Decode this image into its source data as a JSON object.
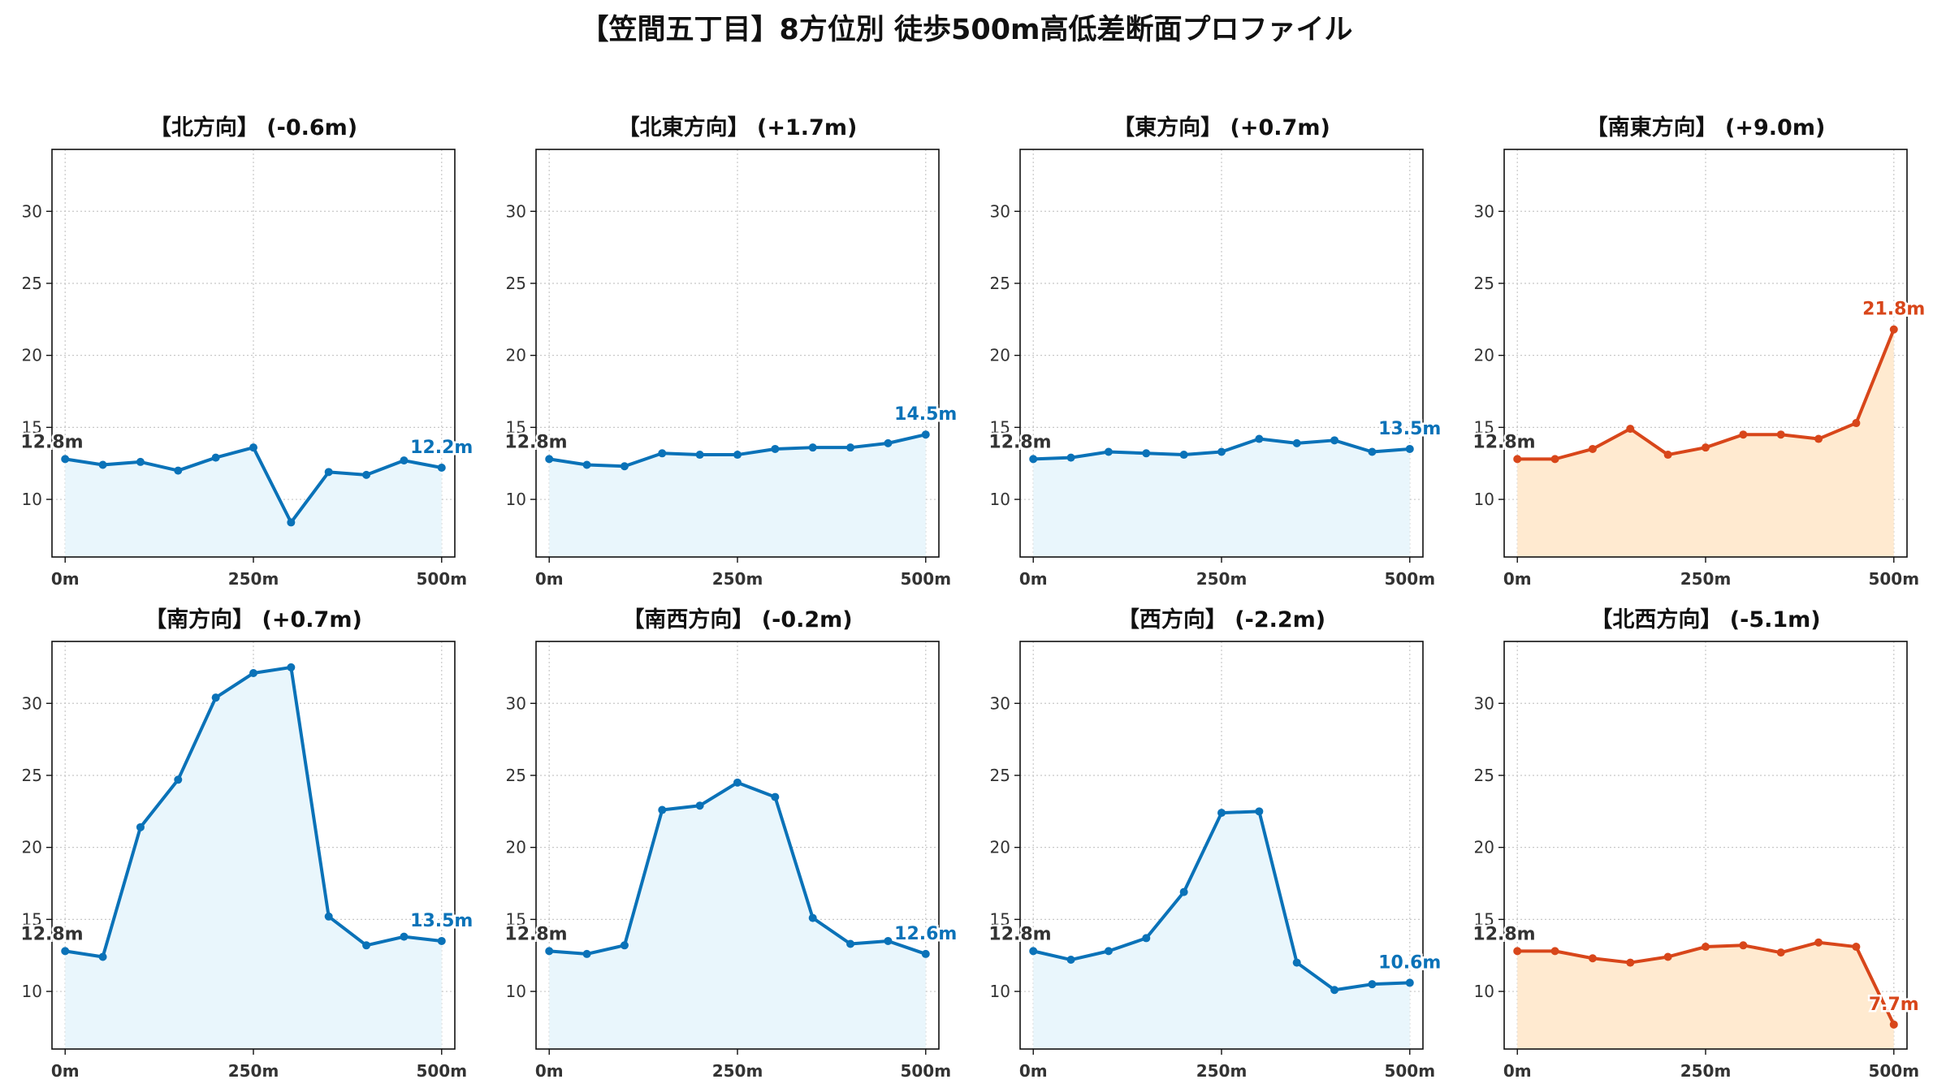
{
  "title": "【笠間五丁目】8方位別 徒歩500m高低差断面プロファイル",
  "colors": {
    "normal_line": "#0a72b8",
    "normal_fill": "#e9f6fc",
    "alert_line": "#d8461a",
    "alert_fill": "#ffead0",
    "start_label": "#333333",
    "grid": "#c8c8c8"
  },
  "chart_data": [
    {
      "type": "area",
      "title": "【北方向】 (-0.6m)",
      "x": [
        0,
        50,
        100,
        150,
        200,
        250,
        300,
        350,
        400,
        450,
        500
      ],
      "values": [
        12.8,
        12.4,
        12.6,
        12.0,
        12.9,
        13.6,
        8.4,
        11.9,
        11.7,
        12.7,
        12.2
      ],
      "start_label": "12.8m",
      "end_label": "12.2m",
      "highlight": false,
      "ylim": [
        6.0,
        34.3
      ],
      "yticks": [
        "10",
        "15",
        "20",
        "25",
        "30"
      ],
      "xticks": [
        "0m",
        "250m",
        "500m"
      ],
      "grid": true
    },
    {
      "type": "area",
      "title": "【北東方向】 (+1.7m)",
      "x": [
        0,
        50,
        100,
        150,
        200,
        250,
        300,
        350,
        400,
        450,
        500
      ],
      "values": [
        12.8,
        12.4,
        12.3,
        13.2,
        13.1,
        13.1,
        13.5,
        13.6,
        13.6,
        13.9,
        14.5
      ],
      "start_label": "12.8m",
      "end_label": "14.5m",
      "highlight": false,
      "ylim": [
        6.0,
        34.3
      ],
      "yticks": [
        "10",
        "15",
        "20",
        "25",
        "30"
      ],
      "xticks": [
        "0m",
        "250m",
        "500m"
      ],
      "grid": true
    },
    {
      "type": "area",
      "title": "【東方向】 (+0.7m)",
      "x": [
        0,
        50,
        100,
        150,
        200,
        250,
        300,
        350,
        400,
        450,
        500
      ],
      "values": [
        12.8,
        12.9,
        13.3,
        13.2,
        13.1,
        13.3,
        14.2,
        13.9,
        14.1,
        13.3,
        13.5
      ],
      "start_label": "12.8m",
      "end_label": "13.5m",
      "highlight": false,
      "ylim": [
        6.0,
        34.3
      ],
      "yticks": [
        "10",
        "15",
        "20",
        "25",
        "30"
      ],
      "xticks": [
        "0m",
        "250m",
        "500m"
      ],
      "grid": true
    },
    {
      "type": "area",
      "title": "【南東方向】 (+9.0m)",
      "x": [
        0,
        50,
        100,
        150,
        200,
        250,
        300,
        350,
        400,
        450,
        500
      ],
      "values": [
        12.8,
        12.8,
        13.5,
        14.9,
        13.1,
        13.6,
        14.5,
        14.5,
        14.2,
        15.3,
        21.8
      ],
      "start_label": "12.8m",
      "end_label": "21.8m",
      "highlight": true,
      "ylim": [
        6.0,
        34.3
      ],
      "yticks": [
        "10",
        "15",
        "20",
        "25",
        "30"
      ],
      "xticks": [
        "0m",
        "250m",
        "500m"
      ],
      "grid": true
    },
    {
      "type": "area",
      "title": "【南方向】 (+0.7m)",
      "x": [
        0,
        50,
        100,
        150,
        200,
        250,
        300,
        350,
        400,
        450,
        500
      ],
      "values": [
        12.8,
        12.4,
        21.4,
        24.7,
        30.4,
        32.1,
        32.5,
        15.2,
        13.2,
        13.8,
        13.5
      ],
      "start_label": "12.8m",
      "end_label": "13.5m",
      "highlight": false,
      "ylim": [
        6.0,
        34.3
      ],
      "yticks": [
        "10",
        "15",
        "20",
        "25",
        "30"
      ],
      "xticks": [
        "0m",
        "250m",
        "500m"
      ],
      "grid": true
    },
    {
      "type": "area",
      "title": "【南西方向】 (-0.2m)",
      "x": [
        0,
        50,
        100,
        150,
        200,
        250,
        300,
        350,
        400,
        450,
        500
      ],
      "values": [
        12.8,
        12.6,
        13.2,
        22.6,
        22.9,
        24.5,
        23.5,
        15.1,
        13.3,
        13.5,
        12.6
      ],
      "start_label": "12.8m",
      "end_label": "12.6m",
      "highlight": false,
      "ylim": [
        6.0,
        34.3
      ],
      "yticks": [
        "10",
        "15",
        "20",
        "25",
        "30"
      ],
      "xticks": [
        "0m",
        "250m",
        "500m"
      ],
      "grid": true
    },
    {
      "type": "area",
      "title": "【西方向】 (-2.2m)",
      "x": [
        0,
        50,
        100,
        150,
        200,
        250,
        300,
        350,
        400,
        450,
        500
      ],
      "values": [
        12.8,
        12.2,
        12.8,
        13.7,
        16.9,
        22.4,
        22.5,
        12.0,
        10.1,
        10.5,
        10.6
      ],
      "start_label": "12.8m",
      "end_label": "10.6m",
      "highlight": false,
      "ylim": [
        6.0,
        34.3
      ],
      "yticks": [
        "10",
        "15",
        "20",
        "25",
        "30"
      ],
      "xticks": [
        "0m",
        "250m",
        "500m"
      ],
      "grid": true
    },
    {
      "type": "area",
      "title": "【北西方向】 (-5.1m)",
      "x": [
        0,
        50,
        100,
        150,
        200,
        250,
        300,
        350,
        400,
        450,
        500
      ],
      "values": [
        12.8,
        12.8,
        12.3,
        12.0,
        12.4,
        13.1,
        13.2,
        12.7,
        13.4,
        13.1,
        7.7
      ],
      "start_label": "12.8m",
      "end_label": "7.7m",
      "highlight": true,
      "ylim": [
        6.0,
        34.3
      ],
      "yticks": [
        "10",
        "15",
        "20",
        "25",
        "30"
      ],
      "xticks": [
        "0m",
        "250m",
        "500m"
      ],
      "grid": true
    }
  ]
}
